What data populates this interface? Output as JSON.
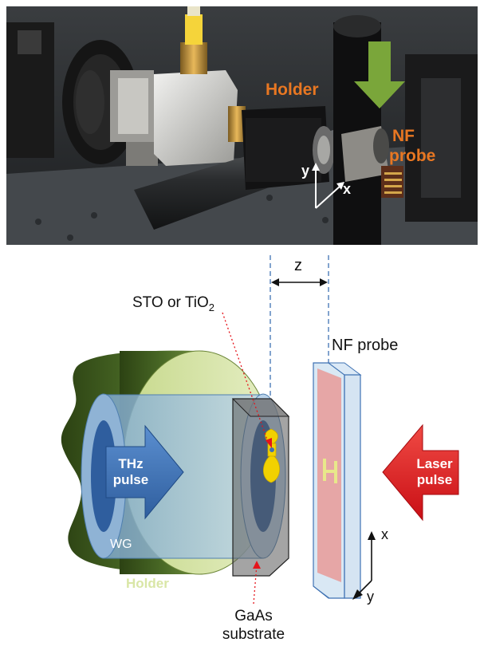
{
  "photo": {
    "holder_label": "Holder",
    "nf_probe_label_line1": "NF",
    "nf_probe_label_line2": "probe",
    "axis_y": "y",
    "axis_x": "x"
  },
  "diagram": {
    "z_label": "z",
    "sto_label_main": "STO or TiO",
    "sto_label_sub": "2",
    "nf_probe_label": "NF probe",
    "thz_label_line1": "THz",
    "thz_label_line2": "pulse",
    "laser_label_line1": "Laser",
    "laser_label_line2": "pulse",
    "wg_label": "WG",
    "holder_label": "Holder",
    "gaas_label_line1": "GaAs",
    "gaas_label_line2": "substrate",
    "axis_x": "x",
    "axis_y": "y"
  },
  "colors": {
    "orange_label": "#e87722",
    "green_arrow": "#7aa63a",
    "holder_dark": "#3d5a1e",
    "holder_light": "#d9e6a6",
    "waveguide_blue": "#a9c7e0",
    "thz_arrow": "#3f72b3",
    "laser_arrow": "#e5141b",
    "probe_pink": "#e89a98",
    "antenna_yellow": "#f2d100",
    "dashed_blue": "#3f72b3",
    "dotted_red": "#e5141b"
  }
}
